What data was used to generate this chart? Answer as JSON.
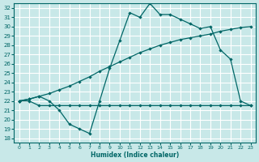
{
  "xlabel": "Humidex (Indice chaleur)",
  "bg_color": "#c8e8e8",
  "grid_color": "#ffffff",
  "line_color": "#006666",
  "xlim": [
    -0.5,
    23.5
  ],
  "ylim": [
    17.5,
    32.5
  ],
  "xticks": [
    0,
    1,
    2,
    3,
    4,
    5,
    6,
    7,
    8,
    9,
    10,
    11,
    12,
    13,
    14,
    15,
    16,
    17,
    18,
    19,
    20,
    21,
    22,
    23
  ],
  "yticks": [
    18,
    19,
    20,
    21,
    22,
    23,
    24,
    25,
    26,
    27,
    28,
    29,
    30,
    31,
    32
  ],
  "curve1_x": [
    0,
    1,
    2,
    3,
    4,
    5,
    6,
    7,
    8,
    9,
    10,
    11,
    12,
    13,
    14,
    15,
    16,
    17,
    18,
    19,
    20,
    21,
    22,
    23
  ],
  "curve1_y": [
    22.0,
    22.2,
    22.5,
    22.8,
    23.2,
    23.6,
    24.1,
    24.6,
    25.2,
    25.7,
    26.2,
    26.7,
    27.2,
    27.6,
    28.0,
    28.3,
    28.6,
    28.8,
    29.0,
    29.2,
    29.5,
    29.7,
    29.9,
    30.0
  ],
  "curve2_x": [
    0,
    1,
    2,
    3,
    4,
    5,
    6,
    7,
    8,
    9,
    10,
    11,
    12,
    13,
    14,
    15,
    16,
    17,
    18,
    19,
    20,
    21,
    22,
    23
  ],
  "curve2_y": [
    22.0,
    22.2,
    22.5,
    22.0,
    21.0,
    19.5,
    19.0,
    18.5,
    22.0,
    25.5,
    28.5,
    31.5,
    31.0,
    32.5,
    31.3,
    31.3,
    30.8,
    30.3,
    29.8,
    30.0,
    27.5,
    26.5,
    22.0,
    21.5
  ],
  "curve3_x": [
    0,
    1,
    2,
    3,
    4,
    5,
    6,
    7,
    8,
    9,
    10,
    11,
    12,
    13,
    14,
    15,
    16,
    17,
    18,
    19,
    20,
    21,
    22,
    23
  ],
  "curve3_y": [
    22.0,
    22.0,
    21.5,
    21.5,
    21.5,
    21.5,
    21.5,
    21.5,
    21.5,
    21.5,
    21.5,
    21.5,
    21.5,
    21.5,
    21.5,
    21.5,
    21.5,
    21.5,
    21.5,
    21.5,
    21.5,
    21.5,
    21.5,
    21.5
  ]
}
